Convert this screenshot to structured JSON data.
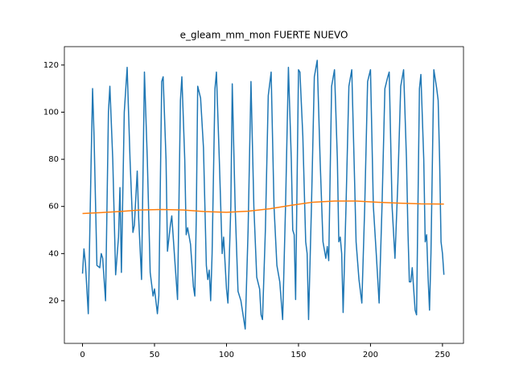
{
  "chart_data": {
    "type": "line",
    "title": "e_gleam_mm_mon FUERTE NUEVO",
    "series": [
      {
        "color": "#1f77b4",
        "x": [
          0,
          1,
          2,
          4,
          6,
          7,
          8,
          10,
          12,
          13,
          14,
          16,
          18,
          19,
          21,
          23,
          25,
          26,
          27,
          29,
          31,
          33,
          35,
          36,
          38,
          39,
          41,
          43,
          45,
          47,
          49,
          50,
          52,
          53,
          55,
          56,
          58,
          59,
          61,
          62,
          64,
          66,
          68,
          69,
          71,
          72,
          73,
          75,
          77,
          78,
          79,
          80,
          82,
          84,
          86,
          87,
          88,
          89,
          90,
          92,
          93,
          95,
          97,
          98,
          100,
          101,
          103,
          104,
          106,
          108,
          110,
          113,
          115,
          117,
          119,
          121,
          123,
          124,
          125,
          127,
          129,
          131,
          133,
          135,
          137,
          139,
          141,
          143,
          145,
          146,
          147,
          148,
          150,
          151,
          153,
          155,
          156,
          157,
          159,
          161,
          163,
          165,
          167,
          169,
          170,
          171,
          173,
          175,
          177,
          178,
          179,
          180,
          181,
          183,
          185,
          187,
          189,
          190,
          192,
          194,
          196,
          198,
          200,
          202,
          204,
          206,
          208,
          210,
          212,
          213,
          215,
          217,
          219,
          221,
          223,
          225,
          226,
          227,
          228,
          229,
          231,
          232,
          234,
          235,
          237,
          238,
          239,
          240,
          241,
          242,
          244,
          246,
          247,
          248,
          249,
          250,
          251
        ],
        "values": [
          31.5,
          42,
          36,
          14.5,
          80,
          110,
          90,
          35,
          34,
          40,
          38,
          20,
          100,
          111,
          80,
          31,
          47,
          68,
          32,
          100,
          119,
          80,
          49,
          52,
          75,
          55,
          29,
          117,
          80,
          32,
          22,
          25,
          14.5,
          22,
          113,
          115,
          80,
          41,
          52,
          56,
          38,
          20.5,
          105,
          115,
          80,
          48,
          51,
          44,
          26,
          22,
          55,
          111,
          106,
          85,
          35,
          29,
          33,
          20,
          40,
          110,
          117,
          80,
          40,
          47,
          25,
          19,
          60,
          112,
          60,
          24,
          20,
          8,
          50,
          113,
          60,
          30,
          25,
          14,
          12,
          50,
          107,
          117,
          60,
          35,
          28,
          12,
          60,
          119,
          80,
          50,
          48,
          20.5,
          118,
          117,
          90,
          45,
          40,
          12,
          60,
          115,
          122,
          80,
          45,
          38,
          43,
          37,
          111,
          118,
          80,
          45,
          47,
          40,
          15,
          60,
          111,
          118,
          70,
          45,
          29,
          19,
          60,
          113,
          118,
          60,
          40,
          19,
          60,
          110,
          115,
          117,
          60,
          38,
          70,
          111,
          118,
          80,
          50,
          28,
          28,
          34,
          16,
          14,
          110,
          116,
          80,
          45,
          48,
          30,
          16,
          40,
          118,
          110,
          105,
          80,
          45,
          40,
          31
        ]
      },
      {
        "color": "#ff7f0e",
        "x": [
          0,
          10,
          25,
          40,
          55,
          70,
          85,
          100,
          115,
          130,
          145,
          160,
          175,
          190,
          205,
          220,
          235,
          251
        ],
        "values": [
          57,
          57.3,
          57.8,
          58.5,
          58.7,
          58.5,
          57.8,
          57.5,
          58,
          59,
          60.5,
          61.8,
          62.3,
          62.3,
          61.8,
          61.4,
          61.1,
          61
        ]
      }
    ],
    "xlim": [
      -12.6,
      264.6
    ],
    "xticks": [
      0,
      50,
      100,
      150,
      200,
      250
    ],
    "ylim": [
      1.9,
      127.8
    ],
    "yticks": [
      20,
      40,
      60,
      80,
      100,
      120
    ]
  }
}
